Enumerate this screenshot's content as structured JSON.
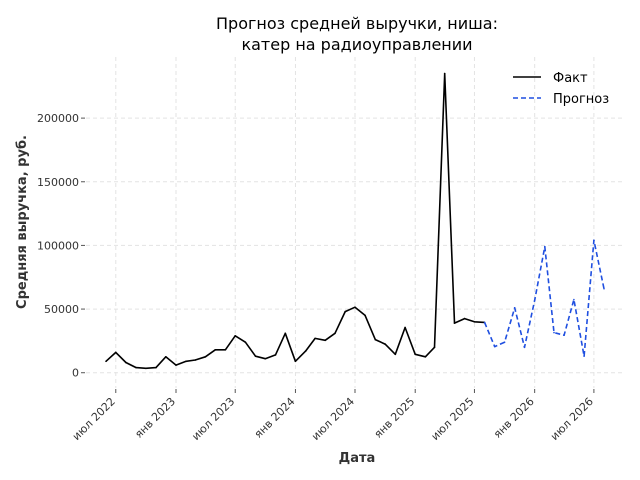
{
  "chart_data": {
    "type": "line",
    "title_lines": [
      "Прогноз средней выручки, ниша:",
      "катер на радиоуправлении"
    ],
    "xlabel": "Дата",
    "ylabel": "Средняя выручка, руб.",
    "x_ticks": [
      {
        "date": "2022-07-01",
        "label": "июл 2022"
      },
      {
        "date": "2023-01-01",
        "label": "янв 2023"
      },
      {
        "date": "2023-07-01",
        "label": "июл 2023"
      },
      {
        "date": "2024-01-01",
        "label": "янв 2024"
      },
      {
        "date": "2024-07-01",
        "label": "июл 2024"
      },
      {
        "date": "2025-01-01",
        "label": "янв 2025"
      },
      {
        "date": "2025-07-01",
        "label": "июл 2025"
      },
      {
        "date": "2026-01-01",
        "label": "янв 2026"
      },
      {
        "date": "2026-07-01",
        "label": "июл 2026"
      }
    ],
    "y_ticks": [
      0,
      50000,
      100000,
      150000,
      200000
    ],
    "xlim": [
      "2022-04-01",
      "2026-10-01"
    ],
    "ylim": [
      -12000,
      248000
    ],
    "grid": true,
    "legend_position": "top-right",
    "series": [
      {
        "name": "Факт",
        "color": "#000000",
        "style": "solid",
        "x": [
          "2022-06-01",
          "2022-07-01",
          "2022-08-01",
          "2022-09-01",
          "2022-10-01",
          "2022-11-01",
          "2022-12-01",
          "2023-01-01",
          "2023-02-01",
          "2023-03-01",
          "2023-04-01",
          "2023-05-01",
          "2023-06-01",
          "2023-07-01",
          "2023-08-01",
          "2023-09-01",
          "2023-10-01",
          "2023-11-01",
          "2023-12-01",
          "2024-01-01",
          "2024-02-01",
          "2024-03-01",
          "2024-04-01",
          "2024-05-01",
          "2024-06-01",
          "2024-07-01",
          "2024-08-01",
          "2024-09-01",
          "2024-10-01",
          "2024-11-01",
          "2024-12-01",
          "2025-01-01",
          "2025-02-01",
          "2025-03-01",
          "2025-04-01",
          "2025-05-01",
          "2025-06-01",
          "2025-07-01",
          "2025-08-01"
        ],
        "y": [
          9000,
          16000,
          8000,
          4000,
          3500,
          4000,
          12500,
          6000,
          9000,
          10000,
          12500,
          18000,
          18000,
          29000,
          24000,
          13000,
          11000,
          14000,
          31000,
          9000,
          17000,
          27000,
          25500,
          31000,
          48000,
          51500,
          45000,
          26000,
          22500,
          14500,
          35500,
          14500,
          12500,
          20000,
          235000,
          39000,
          42500,
          40000,
          39500
        ]
      },
      {
        "name": "Прогноз",
        "color": "#1f4fe0",
        "style": "dashed",
        "x": [
          "2025-08-01",
          "2025-09-01",
          "2025-10-01",
          "2025-11-01",
          "2025-12-01",
          "2026-01-01",
          "2026-02-01",
          "2026-03-01",
          "2026-04-01",
          "2026-05-01",
          "2026-06-01",
          "2026-07-01",
          "2026-08-01"
        ],
        "y": [
          39500,
          20500,
          24000,
          51000,
          20000,
          57000,
          99000,
          31500,
          29500,
          57500,
          13000,
          104000,
          66000
        ]
      }
    ]
  }
}
